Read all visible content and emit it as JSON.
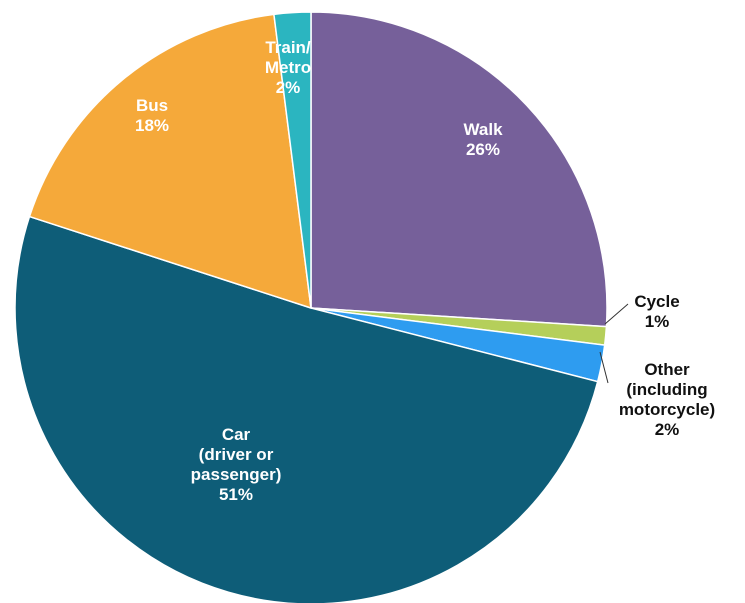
{
  "chart_data": {
    "type": "pie",
    "categories": [
      "Walk",
      "Cycle",
      "Other\n(including\nmotorcycle)",
      "Car\n(driver or\npassenger)",
      "Bus",
      "Train/\nMetro"
    ],
    "values": [
      26,
      1,
      2,
      51,
      18,
      2
    ],
    "value_labels": [
      "26%",
      "1%",
      "2%",
      "51%",
      "18%",
      "2%"
    ],
    "colors": [
      "#76609a",
      "#b5cf5a",
      "#2e9cf0",
      "#0e5d78",
      "#f5a93a",
      "#2bb5c0"
    ]
  }
}
